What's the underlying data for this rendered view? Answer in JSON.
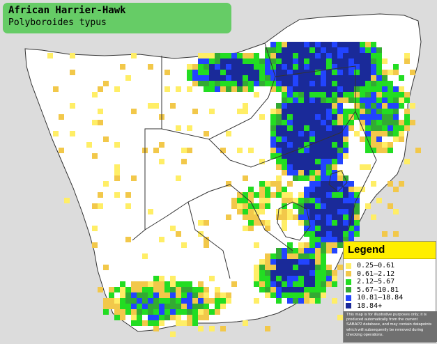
{
  "title": {
    "common_name": "African Harrier-Hawk",
    "scientific_name": "Polyboroides typus"
  },
  "legend": {
    "heading": "Legend",
    "items": [
      {
        "label": "0.25–0.61",
        "color": "#ffee66"
      },
      {
        "label": "0.61–2.12",
        "color": "#f2c84a"
      },
      {
        "label": "2.12–5.67",
        "color": "#22dd22"
      },
      {
        "label": "5.67–10.81",
        "color": "#33aa33"
      },
      {
        "label": "10.81–18.84",
        "color": "#2244ff"
      },
      {
        "label": "18.84+",
        "color": "#1a2a99"
      }
    ],
    "note": "This map is for illustrative purposes only; it is produced automatically from the current SABAP2 database, and may contain datapoints which will subsequently be removed during checking operations."
  },
  "map_colors": {
    "land": "#ffffff",
    "sea": "#dcdcdc",
    "border": "#333333"
  }
}
